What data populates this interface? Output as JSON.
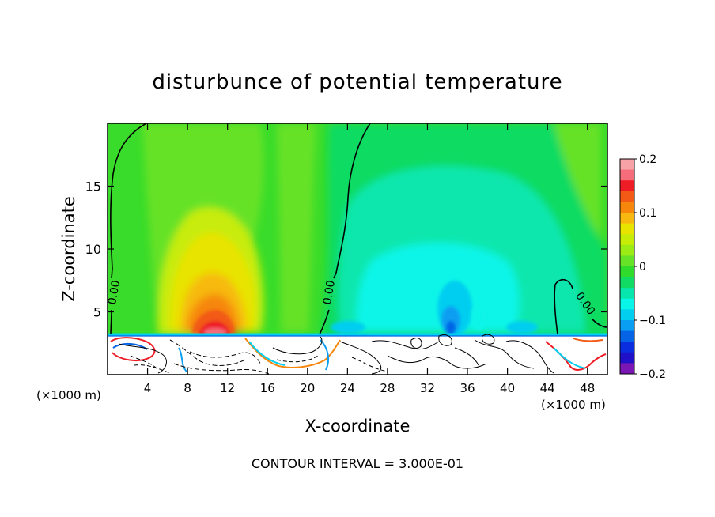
{
  "chart_data": {
    "type": "heatmap",
    "title": "disturbunce of potential temperature",
    "xlabel": "X-coordinate",
    "ylabel": "Z-coordinate",
    "x_unit_left": "(×1000 m)",
    "x_unit_right": "(×1000 m)",
    "footer": "CONTOUR INTERVAL = 3.000E-01",
    "xlim": [
      0,
      50
    ],
    "ylim": [
      0,
      20
    ],
    "x_ticks": [
      4,
      8,
      12,
      16,
      20,
      24,
      28,
      32,
      36,
      40,
      44,
      48
    ],
    "x_tick_labels": [
      "4",
      "8",
      "12",
      "16",
      "20",
      "24",
      "28",
      "32",
      "36",
      "40",
      "44",
      "48"
    ],
    "y_ticks": [
      5,
      10,
      15
    ],
    "y_tick_labels": [
      "5",
      "10",
      "15"
    ],
    "colorbar": {
      "range": [
        -0.2,
        0.2
      ],
      "ticks": [
        0.2,
        0.1,
        0,
        -0.1,
        -0.2
      ],
      "tick_labels": [
        "0.2",
        "0.1",
        "0",
        "−0.1",
        "−0.2"
      ],
      "colors_top_to_bottom": [
        "#f7a2a6",
        "#f56c7a",
        "#ee1c25",
        "#f25a16",
        "#f6860c",
        "#f7b90f",
        "#e9e300",
        "#c7ec07",
        "#9deb15",
        "#66e227",
        "#2fdc2b",
        "#11db62",
        "#07e7ad",
        "#08f5e8",
        "#02cef0",
        "#0a9ef2",
        "#0564e6",
        "#0a2ddf",
        "#2010c8",
        "#7a16b4"
      ]
    },
    "contour_labels": [
      {
        "text": "0.00",
        "x": 1.0,
        "z": 6.5
      },
      {
        "text": "0.00",
        "x": 22.5,
        "z": 6.5
      },
      {
        "text": "0.00",
        "x": 47.5,
        "z": 5.5
      }
    ],
    "regions": [
      {
        "name": "warm-plume",
        "x": 11.5,
        "z": 7.0,
        "max_value": 0.17
      },
      {
        "name": "cool-region",
        "x": 36.0,
        "z": 8.0,
        "min_value": -0.12
      },
      {
        "name": "turbulent-boundary-layer",
        "x_range": [
          0,
          50
        ],
        "z_range": [
          0,
          3.2
        ]
      }
    ]
  }
}
